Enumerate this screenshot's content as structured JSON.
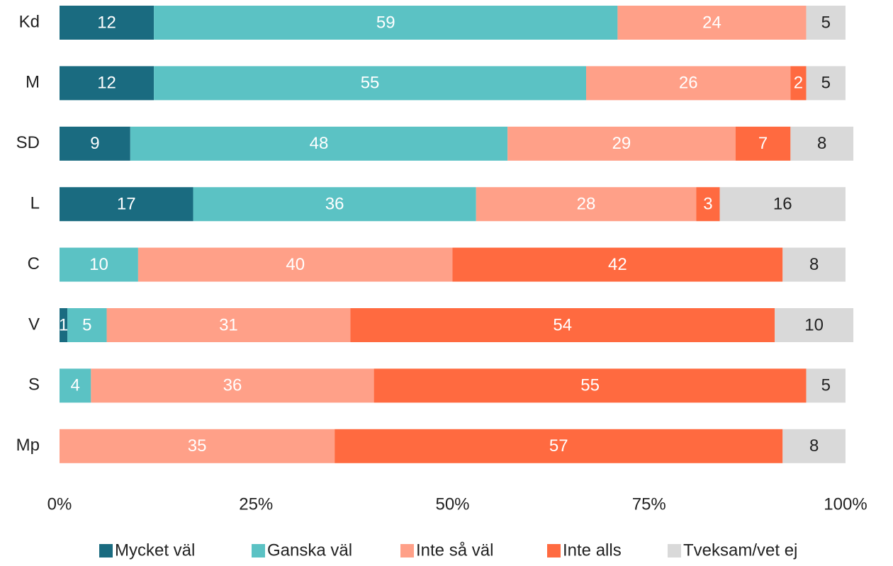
{
  "chart_data": {
    "type": "stacked_barh",
    "categories": [
      "Kd",
      "M",
      "SD",
      "L",
      "C",
      "V",
      "S",
      "Mp"
    ],
    "series": [
      {
        "name": "Mycket väl",
        "color": "#1a6b80",
        "values": [
          12,
          12,
          9,
          17,
          null,
          1,
          null,
          null
        ]
      },
      {
        "name": "Ganska väl",
        "color": "#5bc2c4",
        "values": [
          59,
          55,
          48,
          36,
          10,
          5,
          4,
          null
        ]
      },
      {
        "name": "Inte så väl",
        "color": "#ffa088",
        "values": [
          24,
          26,
          29,
          28,
          40,
          31,
          36,
          35
        ]
      },
      {
        "name": "Inte alls",
        "color": "#ff6a40",
        "values": [
          null,
          2,
          7,
          3,
          42,
          54,
          55,
          57
        ]
      },
      {
        "name": "Tveksam/vet ej",
        "color": "#d9d9d9",
        "values": [
          5,
          5,
          8,
          16,
          8,
          10,
          5,
          8
        ]
      }
    ],
    "xlim": [
      0,
      100
    ],
    "xticks": [
      {
        "value": 0,
        "label": "0%"
      },
      {
        "value": 25,
        "label": "25%"
      },
      {
        "value": 50,
        "label": "50%"
      },
      {
        "value": 75,
        "label": "75%"
      },
      {
        "value": 100,
        "label": "100%"
      }
    ],
    "legend": "bottom"
  }
}
